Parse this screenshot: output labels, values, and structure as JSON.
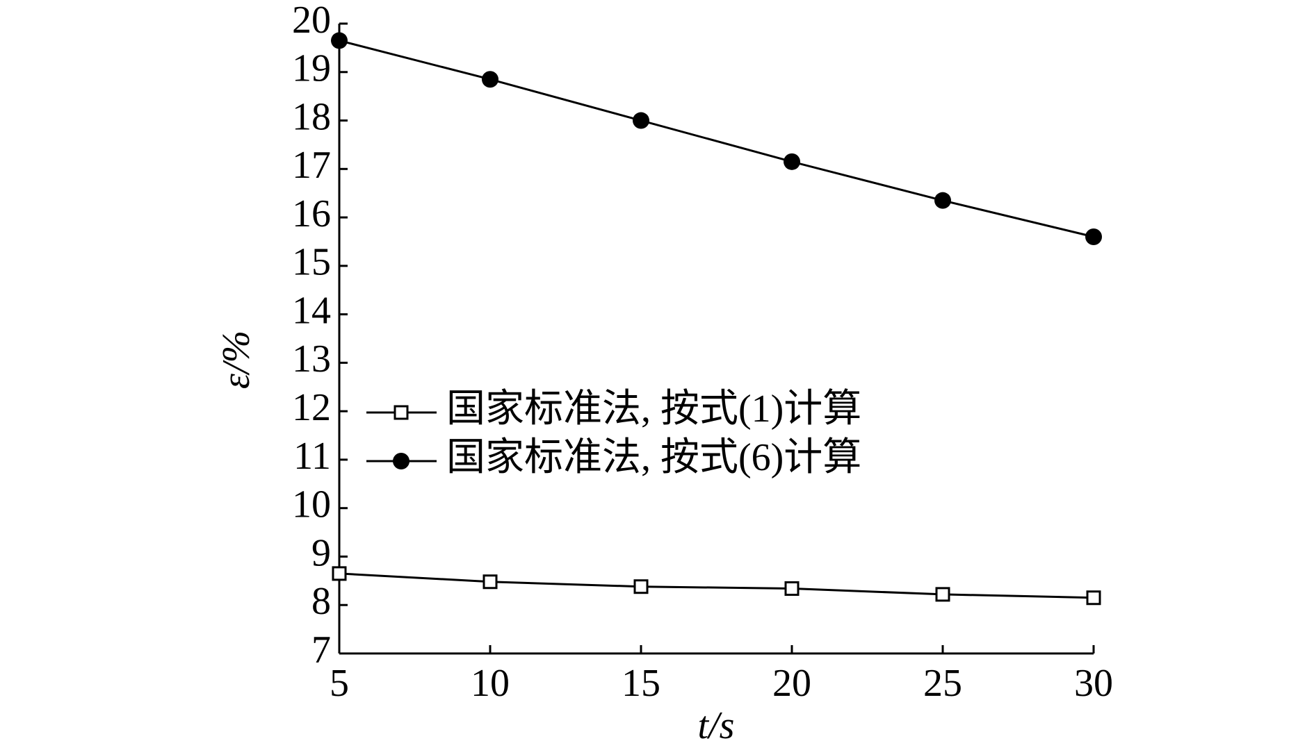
{
  "chart_data": {
    "type": "line",
    "x_label": "t/s",
    "y_label": "ε/%",
    "x": [
      5,
      10,
      15,
      20,
      25,
      30
    ],
    "series": [
      {
        "name": "国家标准法, 按式(1)计算",
        "color": "#000000",
        "marker": "open-square",
        "values": [
          8.65,
          8.48,
          8.38,
          8.34,
          8.22,
          8.15
        ]
      },
      {
        "name": "国家标准法, 按式(6)计算",
        "color": "#000000",
        "marker": "filled-circle",
        "values": [
          19.65,
          18.85,
          18.0,
          17.15,
          16.35,
          15.6
        ]
      }
    ],
    "xlim": [
      5,
      30
    ],
    "xticks": [
      5,
      10,
      15,
      20,
      25,
      30
    ],
    "ylim": [
      7,
      20
    ],
    "yticks": [
      7,
      8,
      9,
      10,
      11,
      12,
      13,
      14,
      15,
      16,
      17,
      18,
      19,
      20
    ],
    "grid": false,
    "legend": "left"
  }
}
